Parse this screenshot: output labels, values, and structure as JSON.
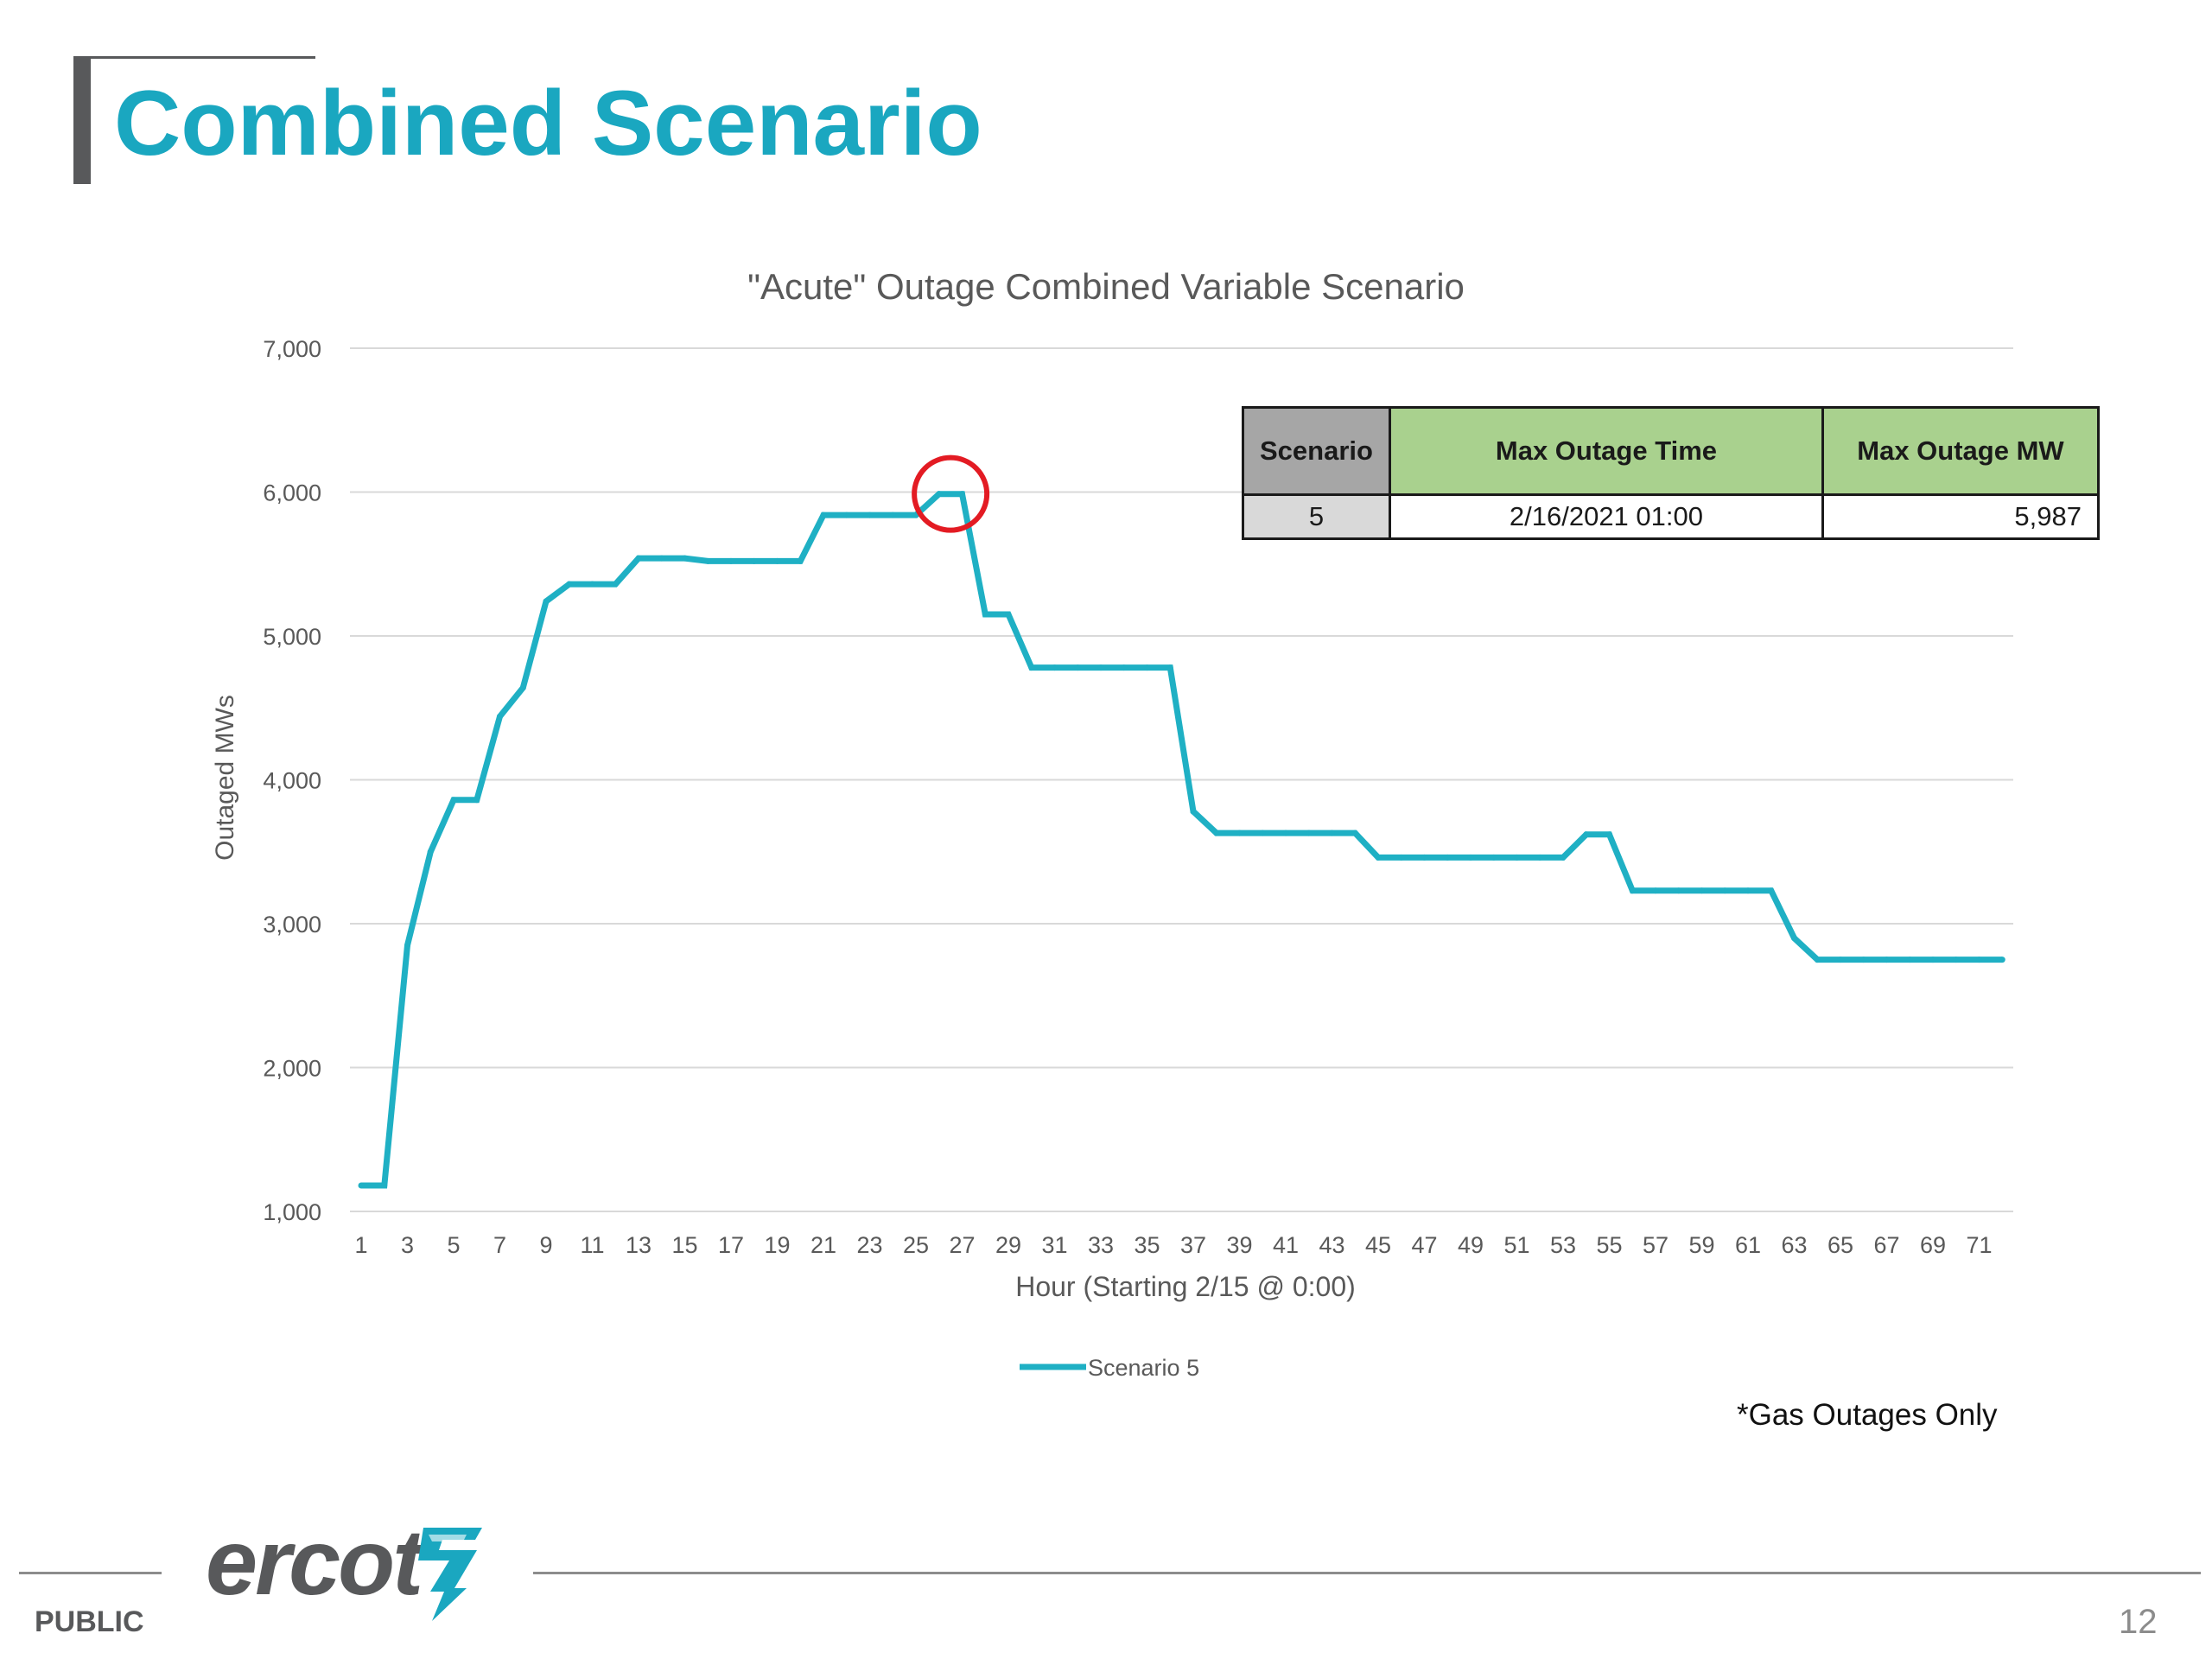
{
  "slide": {
    "title": "Combined Scenario",
    "footnote": "*Gas Outages Only",
    "footer_label": "PUBLIC",
    "page_number": "12",
    "logo_text": "ercot",
    "colors": {
      "brand": "#1aa7c0",
      "series": "#1fb0c4",
      "highlight_circle": "#e31b23"
    }
  },
  "summary_table": {
    "headers": [
      "Scenario",
      "Max Outage Time",
      "Max Outage MW"
    ],
    "row": [
      "5",
      "2/16/2021 01:00",
      "5,987"
    ]
  },
  "chart_data": {
    "type": "line",
    "title": "\"Acute\" Outage Combined Variable Scenario",
    "xlabel": "Hour (Starting 2/15 @ 0:00)",
    "ylabel": "Outaged MWs",
    "ylim": [
      1000,
      7000
    ],
    "yticks": [
      1000,
      2000,
      3000,
      4000,
      5000,
      6000,
      7000
    ],
    "ytick_labels": [
      "1,000",
      "2,000",
      "3,000",
      "4,000",
      "5,000",
      "6,000",
      "7,000"
    ],
    "xtick_labels": [
      "1",
      "3",
      "5",
      "7",
      "9",
      "11",
      "13",
      "15",
      "17",
      "19",
      "21",
      "23",
      "25",
      "27",
      "29",
      "31",
      "33",
      "35",
      "37",
      "39",
      "41",
      "43",
      "45",
      "47",
      "49",
      "51",
      "53",
      "55",
      "57",
      "59",
      "61",
      "63",
      "65",
      "67",
      "69",
      "71"
    ],
    "grid": true,
    "legend": "bottom",
    "highlight": {
      "x": 26.5,
      "y": 5987
    },
    "x": [
      1,
      2,
      3,
      4,
      5,
      6,
      7,
      8,
      9,
      10,
      11,
      12,
      13,
      14,
      15,
      16,
      17,
      18,
      19,
      20,
      21,
      22,
      23,
      24,
      25,
      26,
      27,
      28,
      29,
      30,
      31,
      32,
      33,
      34,
      35,
      36,
      37,
      38,
      39,
      40,
      41,
      42,
      43,
      44,
      45,
      46,
      47,
      48,
      49,
      50,
      51,
      52,
      53,
      54,
      55,
      56,
      57,
      58,
      59,
      60,
      61,
      62,
      63,
      64,
      65,
      66,
      67,
      68,
      69,
      70,
      71,
      72
    ],
    "series": [
      {
        "name": "Scenario 5",
        "values": [
          1180,
          1180,
          2850,
          3500,
          3860,
          3860,
          4440,
          4640,
          5240,
          5360,
          5360,
          5360,
          5540,
          5540,
          5540,
          5520,
          5520,
          5520,
          5520,
          5520,
          5840,
          5840,
          5840,
          5840,
          5840,
          5987,
          5987,
          5150,
          5150,
          4780,
          4780,
          4780,
          4780,
          4780,
          4780,
          4780,
          3780,
          3630,
          3630,
          3630,
          3630,
          3630,
          3630,
          3630,
          3460,
          3460,
          3460,
          3460,
          3460,
          3460,
          3460,
          3460,
          3460,
          3620,
          3620,
          3230,
          3230,
          3230,
          3230,
          3230,
          3230,
          3230,
          2900,
          2750,
          2750,
          2750,
          2750,
          2750,
          2750,
          2750,
          2750,
          2750
        ]
      }
    ]
  }
}
